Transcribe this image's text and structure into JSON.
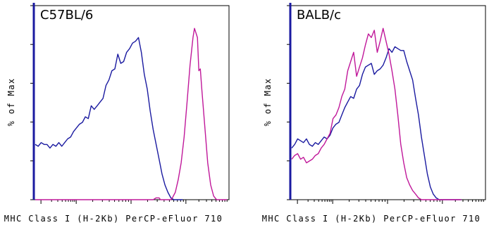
{
  "chart_data": [
    {
      "type": "line",
      "title": "C57BL/6",
      "xlabel": "MHC Class I (H-2Kb) PerCP-eFluor 710",
      "ylabel": "% of Max",
      "xscale": "log",
      "xlim": [
        0,
        100
      ],
      "ylim": [
        0,
        100
      ],
      "legend": "none",
      "series": [
        {
          "color": "#1a1aa0",
          "points": [
            [
              0,
              30
            ],
            [
              2,
              29
            ],
            [
              4,
              31
            ],
            [
              6,
              30
            ],
            [
              8,
              30
            ],
            [
              10,
              28
            ],
            [
              12,
              30
            ],
            [
              14,
              29
            ],
            [
              16,
              31
            ],
            [
              18,
              29
            ],
            [
              20,
              31
            ],
            [
              22,
              33
            ],
            [
              24,
              34
            ],
            [
              26,
              37
            ],
            [
              28,
              39
            ],
            [
              30,
              41
            ],
            [
              32,
              42
            ],
            [
              34,
              45
            ],
            [
              36,
              44
            ],
            [
              38,
              51
            ],
            [
              40,
              49
            ],
            [
              42,
              51
            ],
            [
              44,
              53
            ],
            [
              46,
              55
            ],
            [
              48,
              62
            ],
            [
              50,
              65
            ],
            [
              52,
              70
            ],
            [
              54,
              71
            ],
            [
              56,
              79
            ],
            [
              58,
              74
            ],
            [
              60,
              75
            ],
            [
              62,
              80
            ],
            [
              64,
              82
            ],
            [
              66,
              85
            ],
            [
              68,
              86
            ],
            [
              70,
              88
            ],
            [
              72,
              80
            ],
            [
              74,
              68
            ],
            [
              76,
              60
            ],
            [
              78,
              48
            ],
            [
              80,
              38
            ],
            [
              82,
              30
            ],
            [
              84,
              22
            ],
            [
              86,
              14
            ],
            [
              88,
              8
            ],
            [
              90,
              4
            ],
            [
              92,
              1
            ],
            [
              94,
              0
            ],
            [
              100,
              0
            ]
          ]
        },
        {
          "color": "#c0189a",
          "points": [
            [
              0,
              0
            ],
            [
              80,
              0
            ],
            [
              82,
              1
            ],
            [
              84,
              1
            ],
            [
              85,
              0
            ],
            [
              92,
              0
            ],
            [
              93,
              1
            ],
            [
              95,
              4
            ],
            [
              97,
              11
            ],
            [
              99,
              20
            ],
            [
              101,
              34
            ],
            [
              103,
              53
            ],
            [
              105,
              73
            ],
            [
              107,
              88
            ],
            [
              108,
              93
            ],
            [
              110,
              88
            ],
            [
              111,
              70
            ],
            [
              112,
              71
            ],
            [
              113,
              60
            ],
            [
              115,
              40
            ],
            [
              117,
              20
            ],
            [
              119,
              8
            ],
            [
              121,
              2
            ],
            [
              123,
              0
            ],
            [
              130,
              0
            ]
          ]
        }
      ]
    },
    {
      "type": "line",
      "title": "BALB/c",
      "xlabel": "MHC Class I (H-2Kb) PerCP-eFluor 710",
      "ylabel": "% of Max",
      "xscale": "log",
      "xlim": [
        0,
        100
      ],
      "ylim": [
        0,
        100
      ],
      "legend": "none",
      "series": [
        {
          "color": "#1a1aa0",
          "points": [
            [
              0,
              28
            ],
            [
              2,
              30
            ],
            [
              4,
              33
            ],
            [
              6,
              32
            ],
            [
              8,
              31
            ],
            [
              10,
              33
            ],
            [
              12,
              30
            ],
            [
              14,
              29
            ],
            [
              16,
              31
            ],
            [
              18,
              30
            ],
            [
              20,
              32
            ],
            [
              22,
              34
            ],
            [
              24,
              33
            ],
            [
              26,
              35
            ],
            [
              28,
              39
            ],
            [
              30,
              41
            ],
            [
              32,
              42
            ],
            [
              34,
              46
            ],
            [
              36,
              50
            ],
            [
              38,
              53
            ],
            [
              40,
              56
            ],
            [
              42,
              55
            ],
            [
              44,
              60
            ],
            [
              46,
              62
            ],
            [
              48,
              68
            ],
            [
              50,
              72
            ],
            [
              52,
              73
            ],
            [
              54,
              74
            ],
            [
              56,
              68
            ],
            [
              58,
              70
            ],
            [
              60,
              71
            ],
            [
              62,
              73
            ],
            [
              64,
              77
            ],
            [
              66,
              82
            ],
            [
              68,
              80
            ],
            [
              70,
              83
            ],
            [
              72,
              82
            ],
            [
              74,
              81
            ],
            [
              76,
              81
            ],
            [
              78,
              75
            ],
            [
              80,
              70
            ],
            [
              82,
              65
            ],
            [
              84,
              55
            ],
            [
              86,
              46
            ],
            [
              88,
              34
            ],
            [
              90,
              24
            ],
            [
              92,
              14
            ],
            [
              94,
              7
            ],
            [
              96,
              3
            ],
            [
              98,
              1
            ],
            [
              100,
              0
            ],
            [
              115,
              0
            ]
          ]
        },
        {
          "color": "#c0189a",
          "points": [
            [
              0,
              22
            ],
            [
              2,
              24
            ],
            [
              4,
              25
            ],
            [
              6,
              22
            ],
            [
              8,
              23
            ],
            [
              10,
              20
            ],
            [
              12,
              21
            ],
            [
              14,
              22
            ],
            [
              16,
              24
            ],
            [
              18,
              25
            ],
            [
              20,
              28
            ],
            [
              22,
              30
            ],
            [
              24,
              33
            ],
            [
              26,
              36
            ],
            [
              28,
              44
            ],
            [
              30,
              46
            ],
            [
              32,
              50
            ],
            [
              34,
              56
            ],
            [
              36,
              60
            ],
            [
              38,
              70
            ],
            [
              40,
              75
            ],
            [
              42,
              80
            ],
            [
              44,
              67
            ],
            [
              46,
              72
            ],
            [
              48,
              77
            ],
            [
              50,
              84
            ],
            [
              52,
              90
            ],
            [
              54,
              88
            ],
            [
              56,
              92
            ],
            [
              58,
              80
            ],
            [
              60,
              86
            ],
            [
              62,
              93
            ],
            [
              64,
              86
            ],
            [
              66,
              79
            ],
            [
              68,
              70
            ],
            [
              70,
              60
            ],
            [
              72,
              46
            ],
            [
              74,
              30
            ],
            [
              76,
              20
            ],
            [
              78,
              12
            ],
            [
              80,
              8
            ],
            [
              82,
              5
            ],
            [
              84,
              3
            ],
            [
              86,
              1
            ],
            [
              88,
              0
            ],
            [
              115,
              0
            ]
          ]
        }
      ]
    }
  ]
}
